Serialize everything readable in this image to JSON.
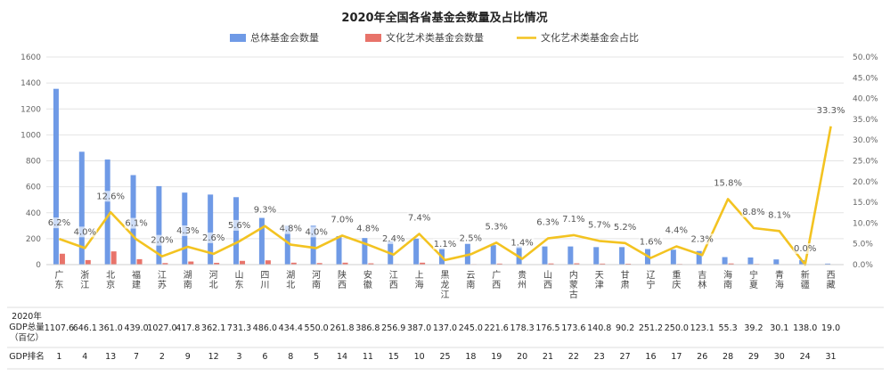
{
  "chart_data": {
    "type": "bar",
    "title": "2020年全国各省基金会数量及占比情况",
    "legend": [
      "总体基金会数量",
      "文化艺术类基金会数量",
      "文化艺术类基金会占比"
    ],
    "legend_position": "top",
    "categories": [
      "广东",
      "浙江",
      "北京",
      "福建",
      "江苏",
      "湖南",
      "河北",
      "山东",
      "四川",
      "湖北",
      "河南",
      "陕西",
      "安徽",
      "江西",
      "上海",
      "黑龙江",
      "云南",
      "广西",
      "贵州",
      "山西",
      "内蒙古",
      "天津",
      "甘肃",
      "辽宁",
      "重庆",
      "吉林",
      "海南",
      "宁夏",
      "青海",
      "新疆",
      "西藏"
    ],
    "series": [
      {
        "name": "总体基金会数量",
        "type": "bar",
        "axis": "left",
        "values": [
          1355,
          870,
          810,
          690,
          605,
          555,
          540,
          520,
          360,
          300,
          300,
          220,
          205,
          180,
          200,
          125,
          160,
          150,
          140,
          140,
          140,
          135,
          135,
          120,
          115,
          105,
          58,
          55,
          40,
          35,
          8
        ]
      },
      {
        "name": "文化艺术类基金会数量",
        "type": "bar",
        "axis": "left",
        "values": [
          84,
          35,
          102,
          42,
          12,
          24,
          14,
          29,
          33,
          15,
          12,
          15,
          10,
          4,
          15,
          1,
          4,
          8,
          2,
          9,
          10,
          8,
          7,
          2,
          5,
          2,
          9,
          5,
          3,
          0,
          3
        ]
      },
      {
        "name": "文化艺术类基金会占比",
        "type": "line",
        "axis": "right",
        "values": [
          6.2,
          4.0,
          12.6,
          6.1,
          2.0,
          4.3,
          2.6,
          5.6,
          9.3,
          4.8,
          4.0,
          7.0,
          4.8,
          2.4,
          7.4,
          1.1,
          2.5,
          5.3,
          1.4,
          6.3,
          7.1,
          5.7,
          5.2,
          1.6,
          4.4,
          2.3,
          15.8,
          8.8,
          8.1,
          0.0,
          33.3
        ],
        "labels": [
          "6.2%",
          "4.0%",
          "12.6%",
          "6.1%",
          "2.0%",
          "4.3%",
          "2.6%",
          "5.6%",
          "9.3%",
          "4.8%",
          "4.0%",
          "7.0%",
          "4.8%",
          "2.4%",
          "7.4%",
          "1.1%",
          "2.5%",
          "5.3%",
          "1.4%",
          "6.3%",
          "7.1%",
          "5.7%",
          "5.2%",
          "1.6%",
          "4.4%",
          "2.3%",
          "15.8%",
          "8.8%",
          "8.1%",
          "0.0%",
          "33.3%"
        ]
      }
    ],
    "y_left": {
      "min": 0,
      "max": 1600,
      "ticks": [
        "0",
        "200",
        "400",
        "600",
        "800",
        "1000",
        "1200",
        "1400",
        "1600"
      ]
    },
    "y_right": {
      "min": 0,
      "max": 50,
      "ticks": [
        "0.0%",
        "5.0%",
        "10.0%",
        "15.0%",
        "20.0%",
        "25.0%",
        "30.0%",
        "35.0%",
        "40.0%",
        "45.0%",
        "50.0%"
      ]
    },
    "grid": true,
    "table": {
      "gdp_label": [
        "2020年",
        "GDP总量",
        "（百亿）"
      ],
      "gdp": [
        "1107.6",
        "646.1",
        "361.0",
        "439.0",
        "1027.0",
        "417.8",
        "362.1",
        "731.3",
        "486.0",
        "434.4",
        "550.0",
        "261.8",
        "386.8",
        "256.9",
        "387.0",
        "137.0",
        "245.0",
        "221.6",
        "178.3",
        "176.5",
        "173.6",
        "140.8",
        "90.2",
        "251.2",
        "250.0",
        "123.1",
        "55.3",
        "39.2",
        "30.1",
        "138.0",
        "19.0"
      ],
      "rank_label": "GDP排名",
      "rank": [
        "1",
        "4",
        "13",
        "7",
        "2",
        "9",
        "12",
        "3",
        "6",
        "8",
        "5",
        "14",
        "11",
        "15",
        "10",
        "25",
        "18",
        "19",
        "20",
        "21",
        "22",
        "23",
        "27",
        "16",
        "17",
        "26",
        "28",
        "29",
        "30",
        "24",
        "31"
      ]
    },
    "colors": {
      "total": "#6f9ae6",
      "culture": "#e8736a",
      "ratio": "#f3c321",
      "grid": "#e4e4e4"
    }
  }
}
